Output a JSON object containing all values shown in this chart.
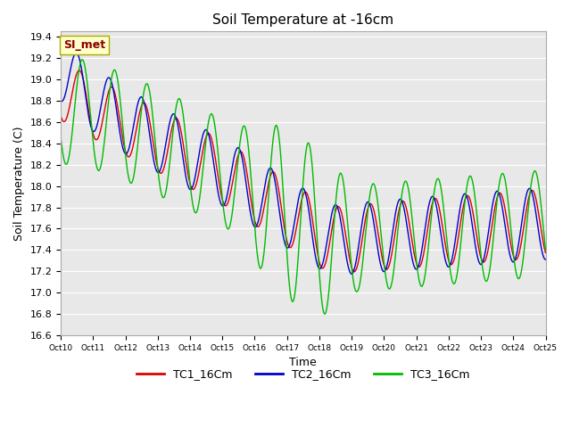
{
  "title": "Soil Temperature at -16cm",
  "xlabel": "Time",
  "ylabel": "Soil Temperature (C)",
  "ylim": [
    16.6,
    19.45
  ],
  "xlim": [
    0,
    360
  ],
  "background_color": "#ffffff",
  "plot_bg_color": "#e8e8e8",
  "grid_color": "#ffffff",
  "annotation_text": "SI_met",
  "annotation_color": "#8b0000",
  "annotation_bg": "#ffffcc",
  "series": [
    {
      "label": "TC1_16Cm",
      "color": "#dd0000"
    },
    {
      "label": "TC2_16Cm",
      "color": "#0000cc"
    },
    {
      "label": "TC3_16Cm",
      "color": "#00bb00"
    }
  ],
  "xtick_labels": [
    "Oct 10",
    "Oct 11",
    "Oct 12",
    "Oct 13",
    "Oct 14",
    "Oct 15",
    "Oct 16",
    "Oct 17",
    "Oct 18",
    "Oct 19",
    "Oct 20",
    "Oct 21",
    "Oct 22",
    "Oct 23",
    "Oct 24",
    "Oct 25"
  ],
  "xtick_positions": [
    0,
    24,
    48,
    72,
    96,
    120,
    144,
    168,
    192,
    216,
    240,
    264,
    288,
    312,
    336,
    360
  ],
  "ytick_values": [
    16.6,
    16.8,
    17.0,
    17.2,
    17.4,
    17.6,
    17.8,
    18.0,
    18.2,
    18.4,
    18.6,
    18.8,
    19.0,
    19.2,
    19.4
  ],
  "title_fontsize": 11,
  "axis_fontsize": 9,
  "tick_fontsize": 8,
  "legend_fontsize": 9
}
